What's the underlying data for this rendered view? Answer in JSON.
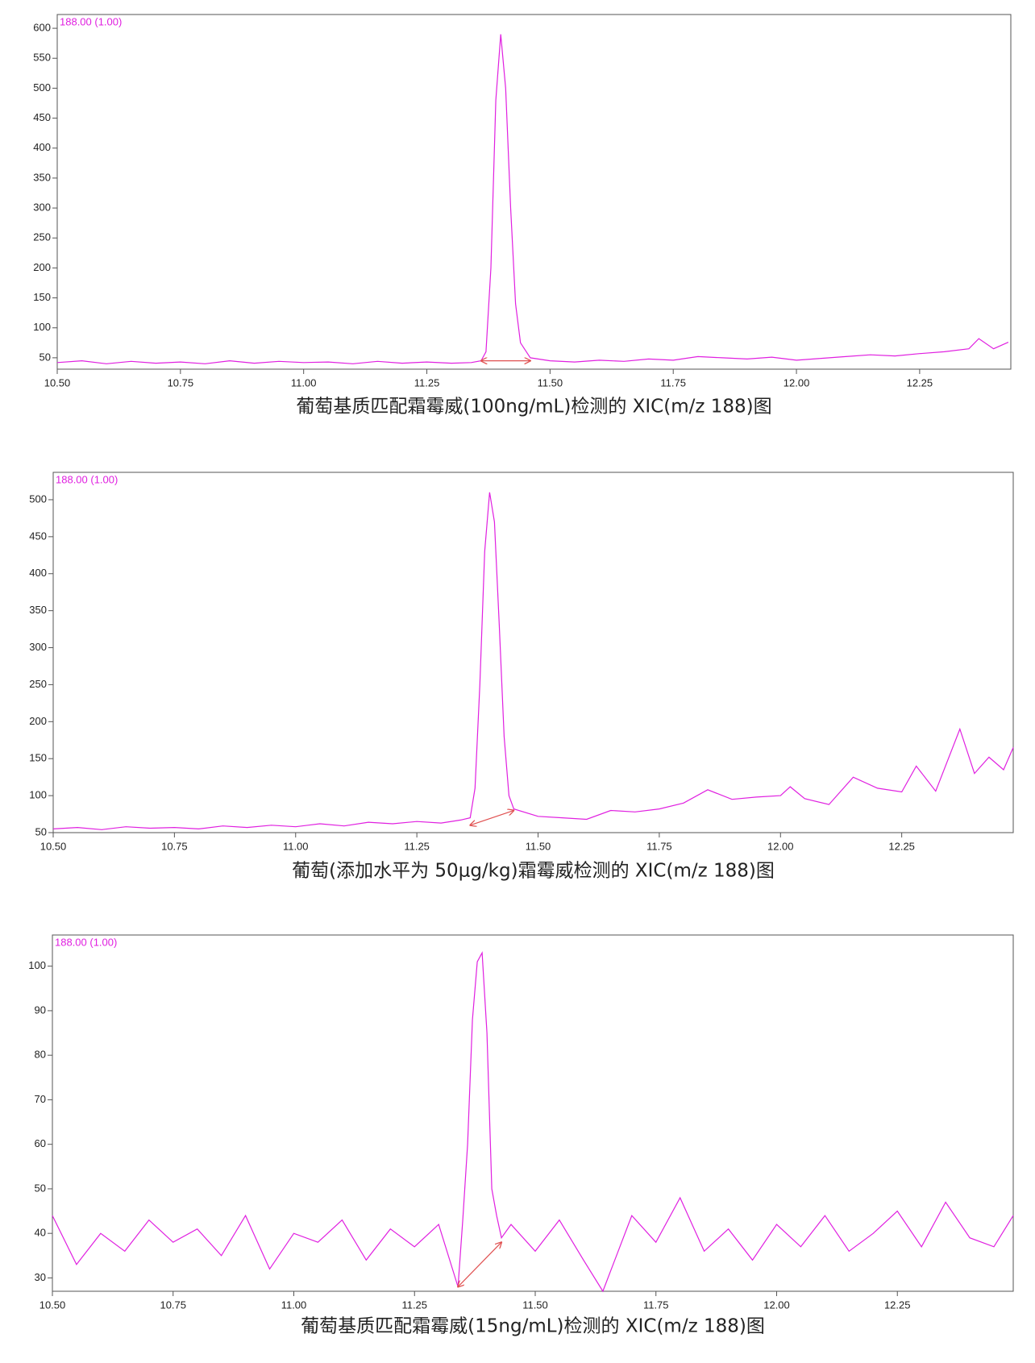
{
  "chart_data": [
    {
      "type": "line",
      "title": "葡萄基质匹配霜霉威(100ng/mL)检测的 XIC(m/z 188)图",
      "x": [
        10.5,
        10.55,
        10.6,
        10.65,
        10.7,
        10.75,
        10.8,
        10.85,
        10.9,
        10.95,
        11.0,
        11.05,
        11.1,
        11.15,
        11.2,
        11.25,
        11.3,
        11.34,
        11.36,
        11.37,
        11.38,
        11.39,
        11.4,
        11.41,
        11.42,
        11.43,
        11.44,
        11.46,
        11.5,
        11.55,
        11.6,
        11.65,
        11.7,
        11.75,
        11.8,
        11.85,
        11.9,
        11.95,
        12.0,
        12.05,
        12.1,
        12.15,
        12.2,
        12.25,
        12.3,
        12.35,
        12.37,
        12.4,
        12.43
      ],
      "series": [
        {
          "name": "188.00 (1.00)",
          "color": "#e020e0",
          "values": [
            42,
            45,
            40,
            44,
            41,
            43,
            40,
            45,
            41,
            44,
            42,
            43,
            40,
            44,
            41,
            43,
            41,
            42,
            45,
            60,
            200,
            480,
            590,
            500,
            300,
            140,
            75,
            50,
            45,
            43,
            46,
            44,
            48,
            46,
            52,
            50,
            48,
            51,
            46,
            49,
            52,
            55,
            53,
            57,
            60,
            65,
            82,
            65,
            76
          ]
        }
      ],
      "baseline_x": [
        11.36,
        11.46
      ],
      "baseline_y": [
        45,
        45
      ],
      "baseline_color": "#e05050",
      "xlim": [
        10.5,
        12.435
      ],
      "ylim": [
        31,
        623
      ],
      "xticks": [
        {
          "value": 10.5,
          "label": "10.50"
        },
        {
          "value": 10.75,
          "label": "10.75"
        },
        {
          "value": 11.0,
          "label": "11.00"
        },
        {
          "value": 11.25,
          "label": "11.25"
        },
        {
          "value": 11.5,
          "label": "11.50"
        },
        {
          "value": 11.75,
          "label": "11.75"
        },
        {
          "value": 12.0,
          "label": "12.00"
        },
        {
          "value": 12.25,
          "label": "12.25"
        }
      ],
      "yticks": [
        50,
        100,
        150,
        200,
        250,
        300,
        350,
        400,
        450,
        500,
        550,
        600
      ]
    },
    {
      "type": "line",
      "title": "葡萄(添加水平为 50μg/kg)霜霉威检测的 XIC(m/z 188)图",
      "x": [
        10.5,
        10.55,
        10.6,
        10.65,
        10.7,
        10.75,
        10.8,
        10.85,
        10.9,
        10.95,
        11.0,
        11.05,
        11.1,
        11.15,
        11.2,
        11.25,
        11.3,
        11.34,
        11.36,
        11.37,
        11.38,
        11.39,
        11.4,
        11.41,
        11.42,
        11.43,
        11.44,
        11.45,
        11.5,
        11.55,
        11.6,
        11.65,
        11.7,
        11.75,
        11.8,
        11.85,
        11.9,
        11.95,
        12.0,
        12.02,
        12.05,
        12.1,
        12.15,
        12.2,
        12.25,
        12.28,
        12.32,
        12.37,
        12.4,
        12.43,
        12.46,
        12.48
      ],
      "series": [
        {
          "name": "188.00 (1.00)",
          "color": "#e020e0",
          "values": [
            55,
            57,
            54,
            58,
            56,
            57,
            55,
            59,
            57,
            60,
            58,
            62,
            59,
            64,
            62,
            65,
            63,
            67,
            70,
            110,
            250,
            430,
            510,
            470,
            330,
            180,
            100,
            82,
            72,
            70,
            68,
            80,
            78,
            82,
            90,
            108,
            95,
            98,
            100,
            112,
            96,
            88,
            125,
            110,
            105,
            140,
            106,
            190,
            130,
            152,
            135,
            165
          ]
        }
      ],
      "baseline_x": [
        11.36,
        11.45
      ],
      "baseline_y": [
        60,
        80
      ],
      "baseline_color": "#e05050",
      "xlim": [
        10.5,
        12.48
      ],
      "ylim": [
        50,
        537
      ],
      "xticks": [
        {
          "value": 10.5,
          "label": "10.50"
        },
        {
          "value": 10.75,
          "label": "10.75"
        },
        {
          "value": 11.0,
          "label": "11.00"
        },
        {
          "value": 11.25,
          "label": "11.25"
        },
        {
          "value": 11.5,
          "label": "11.50"
        },
        {
          "value": 11.75,
          "label": "11.75"
        },
        {
          "value": 12.0,
          "label": "12.00"
        },
        {
          "value": 12.25,
          "label": "12.25"
        }
      ],
      "yticks": [
        50,
        100,
        150,
        200,
        250,
        300,
        350,
        400,
        450,
        500
      ]
    },
    {
      "type": "line",
      "title": "葡萄基质匹配霜霉威(15ng/mL)检测的 XIC(m/z 188)图",
      "x": [
        10.5,
        10.55,
        10.6,
        10.65,
        10.7,
        10.75,
        10.8,
        10.85,
        10.9,
        10.95,
        11.0,
        11.05,
        11.1,
        11.15,
        11.2,
        11.25,
        11.3,
        11.34,
        11.35,
        11.36,
        11.37,
        11.38,
        11.39,
        11.4,
        11.41,
        11.42,
        11.43,
        11.45,
        11.5,
        11.55,
        11.6,
        11.64,
        11.7,
        11.75,
        11.8,
        11.85,
        11.9,
        11.95,
        12.0,
        12.05,
        12.1,
        12.15,
        12.2,
        12.25,
        12.3,
        12.35,
        12.4,
        12.45,
        12.49
      ],
      "series": [
        {
          "name": "188.00 (1.00)",
          "color": "#e020e0",
          "values": [
            44,
            33,
            40,
            36,
            43,
            38,
            41,
            35,
            44,
            32,
            40,
            38,
            43,
            34,
            41,
            37,
            42,
            28,
            43,
            60,
            88,
            101,
            103,
            85,
            50,
            44,
            39,
            42,
            36,
            43,
            34,
            27,
            44,
            38,
            48,
            36,
            41,
            34,
            42,
            37,
            44,
            36,
            40,
            45,
            37,
            47,
            39,
            37,
            44
          ]
        }
      ],
      "baseline_x": [
        11.34,
        11.43
      ],
      "baseline_y": [
        28,
        38
      ],
      "baseline_color": "#e05050",
      "xlim": [
        10.5,
        12.49
      ],
      "ylim": [
        27,
        107
      ],
      "xticks": [
        {
          "value": 10.5,
          "label": "10.50"
        },
        {
          "value": 10.75,
          "label": "10.75"
        },
        {
          "value": 11.0,
          "label": "11.00"
        },
        {
          "value": 11.25,
          "label": "11.25"
        },
        {
          "value": 11.5,
          "label": "11.50"
        },
        {
          "value": 11.75,
          "label": "11.75"
        },
        {
          "value": 12.0,
          "label": "12.00"
        },
        {
          "value": 12.25,
          "label": "12.25"
        }
      ],
      "yticks": [
        30,
        40,
        50,
        60,
        70,
        80,
        90,
        100
      ]
    }
  ]
}
